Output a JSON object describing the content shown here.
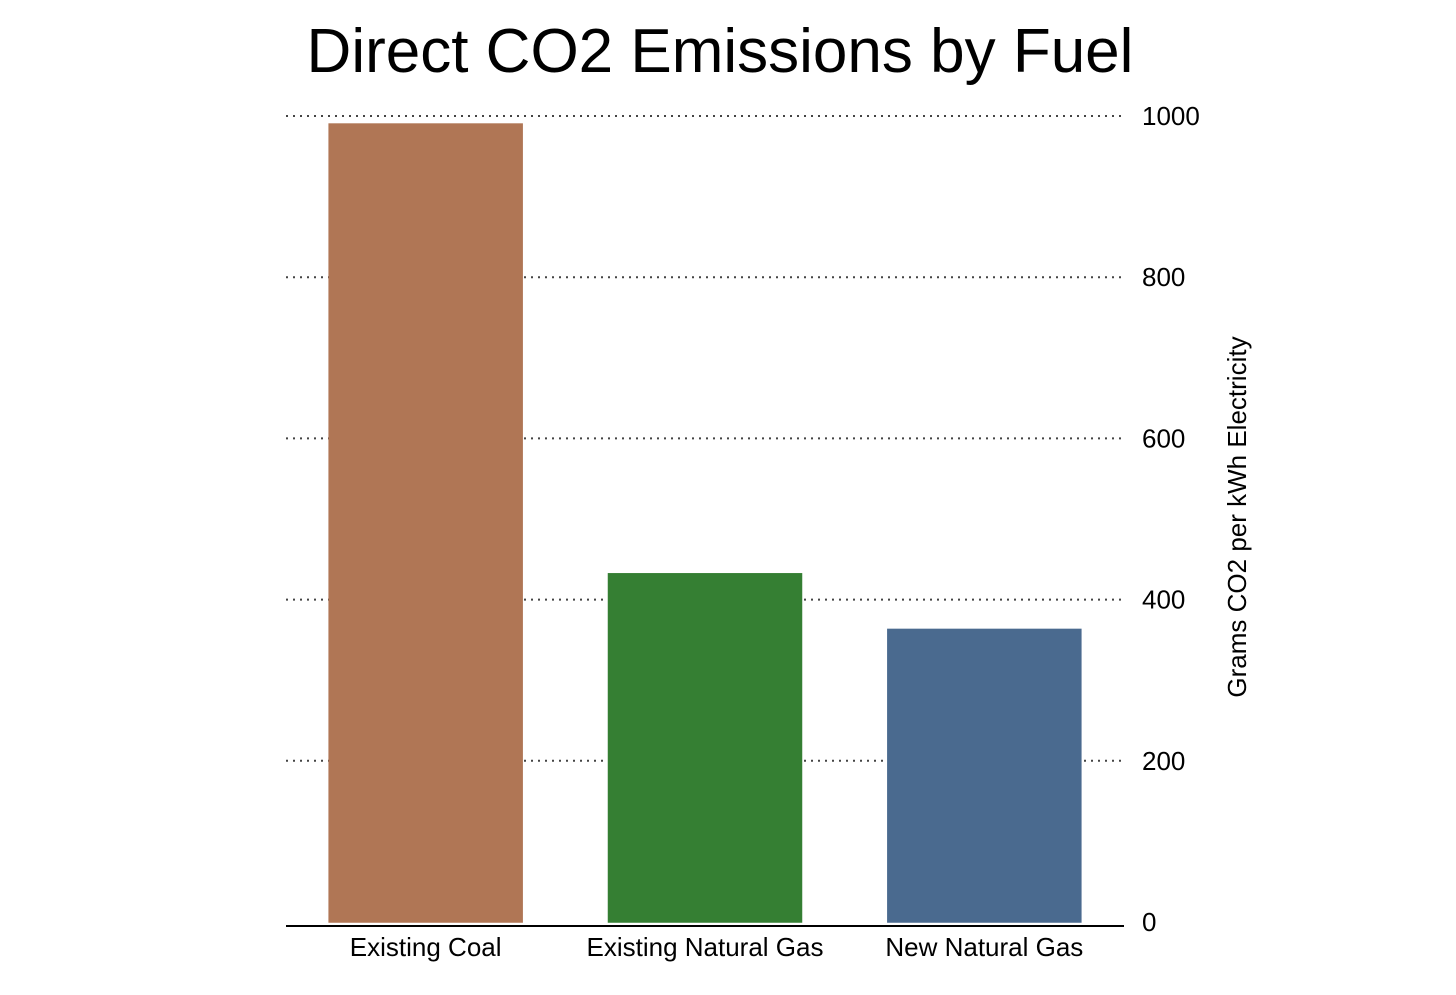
{
  "chart_data": {
    "type": "bar",
    "title": "Direct CO2 Emissions by Fuel",
    "xlabel": "",
    "ylabel": "Grams CO2 per kWh Electricity",
    "categories": [
      "Existing Coal",
      "Existing Natural Gas",
      "New Natural Gas"
    ],
    "values": [
      990,
      432,
      363
    ],
    "colors": [
      "#b07655",
      "#357f33",
      "#4a6a8f"
    ],
    "ylim": [
      0,
      1000
    ],
    "yticks": [
      0,
      200,
      400,
      600,
      800,
      1000
    ],
    "y_axis_side": "right",
    "grid": true,
    "legend": "none"
  }
}
